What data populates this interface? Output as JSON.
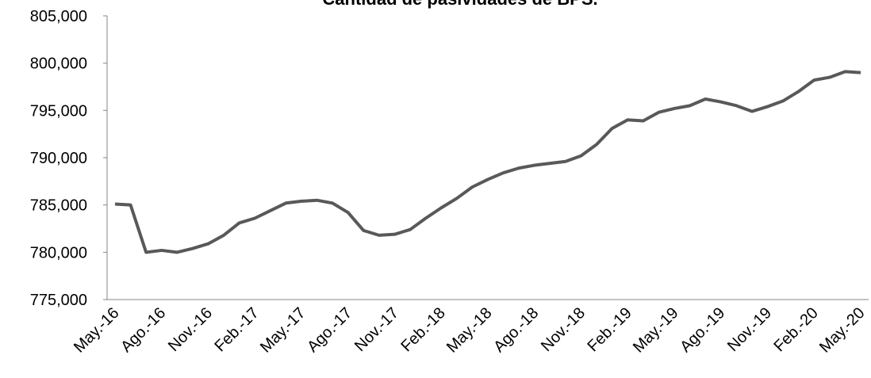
{
  "chart_data": {
    "type": "line",
    "title": "Cantidad de pasividades de BPS.",
    "categories": [
      "May.-16",
      null,
      null,
      "Ago.-16",
      null,
      null,
      "Nov.-16",
      null,
      null,
      "Feb.-17",
      null,
      null,
      "May.-17",
      null,
      null,
      "Ago.-17",
      null,
      null,
      "Nov.-17",
      null,
      null,
      "Feb.-18",
      null,
      null,
      "May.-18",
      null,
      null,
      "Ago.-18",
      null,
      null,
      "Nov.-18",
      null,
      null,
      "Feb.-19",
      null,
      null,
      "May.-19",
      null,
      null,
      "Ago.-19",
      null,
      null,
      "Nov.-19",
      null,
      null,
      "Feb.-20",
      null,
      null,
      "May.-20"
    ],
    "series": [
      {
        "name": "Pasividades",
        "color": "#595959",
        "values": [
          785100,
          785000,
          780000,
          780200,
          780000,
          780400,
          780900,
          781800,
          783100,
          783600,
          784400,
          785200,
          785400,
          785500,
          785200,
          784200,
          782300,
          781800,
          781900,
          782400,
          783600,
          784700,
          785700,
          786900,
          787700,
          788400,
          788900,
          789200,
          789400,
          789600,
          790200,
          791400,
          793100,
          794000,
          793900,
          794800,
          795200,
          795500,
          796200,
          795900,
          795500,
          794900,
          795400,
          796000,
          797000,
          798200,
          798500,
          799100,
          799000
        ]
      }
    ],
    "ylim": [
      775000,
      805000
    ],
    "yticks": [
      {
        "value": 775000,
        "label": "775,000"
      },
      {
        "value": 780000,
        "label": "780,000"
      },
      {
        "value": 785000,
        "label": "785,000"
      },
      {
        "value": 790000,
        "label": "790,000"
      },
      {
        "value": 795000,
        "label": "795,000"
      },
      {
        "value": 800000,
        "label": "800,000"
      },
      {
        "value": 805000,
        "label": "805,000"
      }
    ],
    "grid": false,
    "legend": false
  }
}
